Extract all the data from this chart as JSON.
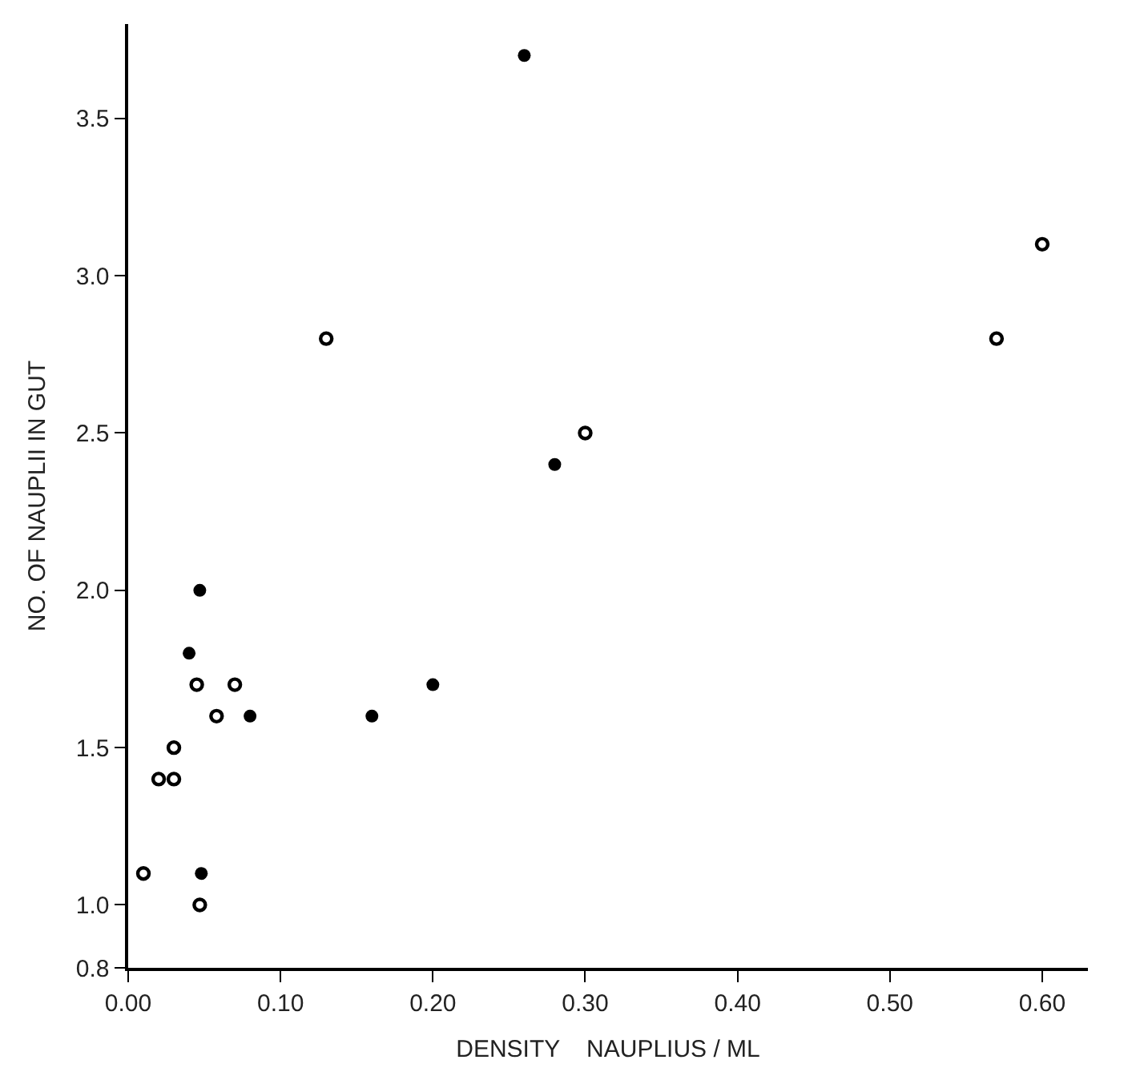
{
  "chart_data": {
    "type": "scatter",
    "xlabel": "DENSITY    NAUPLIUS / ML",
    "ylabel": "NO. OF NAUPLII IN GUT",
    "series": [
      {
        "color": "#000000",
        "x": [
          0.04,
          0.047,
          0.048,
          0.08,
          0.16,
          0.2,
          0.26,
          0.28
        ],
        "values": [
          1.8,
          2.0,
          1.1,
          1.6,
          1.6,
          1.7,
          3.7,
          2.4
        ]
      },
      {
        "color": "#000000",
        "marker": "circle-open",
        "x": [
          0.01,
          0.02,
          0.03,
          0.03,
          0.045,
          0.047,
          0.058,
          0.07,
          0.13,
          0.3,
          0.57,
          0.6
        ],
        "values": [
          1.1,
          1.4,
          1.5,
          1.4,
          1.7,
          1.0,
          1.6,
          1.7,
          2.8,
          2.5,
          2.8,
          3.1
        ]
      }
    ],
    "xlim": [
      0,
      0.63
    ],
    "ylim": [
      0.8,
      3.8
    ],
    "xticks": [
      {
        "value": 0,
        "label": "0.00"
      },
      {
        "value": 0.1,
        "label": "0.10"
      },
      {
        "value": 0.2,
        "label": "0.20"
      },
      {
        "value": 0.3,
        "label": "0.30"
      },
      {
        "value": 0.4,
        "label": "0.40"
      },
      {
        "value": 0.5,
        "label": "0.50"
      },
      {
        "value": 0.6,
        "label": "0.60"
      }
    ],
    "yticks": [
      0.8,
      {
        "value": 1,
        "label": "1.0"
      },
      1.5,
      {
        "value": 2,
        "label": "2.0"
      },
      2.5,
      {
        "value": 3,
        "label": "3.0"
      },
      3.5
    ],
    "marker": "circle"
  }
}
